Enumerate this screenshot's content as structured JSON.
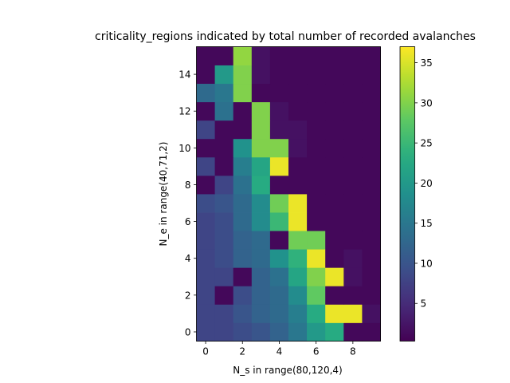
{
  "chart_data": {
    "type": "heatmap",
    "title": "criticality_regions indicated by total number of recorded avalanches",
    "xlabel": "N_s in range(80,120,4)",
    "ylabel": "N_e in range(40,71,2)",
    "x_ticks": [
      "0",
      "2",
      "4",
      "6",
      "8"
    ],
    "x_tick_values": [
      0,
      2,
      4,
      6,
      8
    ],
    "y_ticks": [
      "0",
      "2",
      "4",
      "6",
      "8",
      "10",
      "12",
      "14"
    ],
    "y_tick_values": [
      0,
      2,
      4,
      6,
      8,
      10,
      12,
      14
    ],
    "colorbar_ticks": [
      "5",
      "10",
      "15",
      "20",
      "25",
      "30",
      "35"
    ],
    "colorbar_tick_values": [
      5,
      10,
      15,
      20,
      25,
      30,
      35
    ],
    "colormap": "viridis",
    "vmin": 0.3,
    "vmax": 37,
    "n_cols": 10,
    "n_rows": 16,
    "rows_bottom_to_top": [
      [
        8,
        8,
        9,
        10,
        12,
        15,
        20,
        23,
        1,
        1
      ],
      [
        8,
        8,
        10,
        12,
        13,
        16,
        23,
        36,
        36,
        2
      ],
      [
        8,
        1,
        9,
        12,
        13,
        18,
        28,
        1,
        1,
        1
      ],
      [
        8,
        8,
        1,
        12,
        14,
        22,
        30,
        36,
        2,
        1
      ],
      [
        8,
        9,
        12,
        13,
        19,
        24,
        36,
        1,
        2,
        1
      ],
      [
        8,
        9,
        12,
        13,
        1,
        29,
        29,
        1,
        1,
        1
      ],
      [
        8,
        9,
        13,
        18,
        25,
        36,
        1,
        1,
        1,
        1
      ],
      [
        9,
        10,
        13,
        18,
        29,
        36,
        1,
        1,
        1,
        1
      ],
      [
        1,
        8,
        14,
        23,
        1,
        1,
        1,
        1,
        1,
        1
      ],
      [
        8,
        1,
        16,
        22,
        36,
        1,
        1,
        1,
        1,
        1
      ],
      [
        1,
        1,
        19,
        30,
        30,
        2,
        1,
        1,
        1,
        1
      ],
      [
        8,
        1,
        1,
        30,
        2,
        2,
        1,
        1,
        1,
        1
      ],
      [
        1,
        14,
        1,
        30,
        2,
        1,
        1,
        1,
        1,
        1
      ],
      [
        13,
        15,
        30,
        1,
        1,
        1,
        1,
        1,
        1,
        1
      ],
      [
        1,
        20,
        30,
        2,
        1,
        1,
        1,
        1,
        1,
        1
      ],
      [
        1,
        1,
        31,
        2,
        1,
        1,
        1,
        1,
        1,
        1
      ]
    ]
  }
}
